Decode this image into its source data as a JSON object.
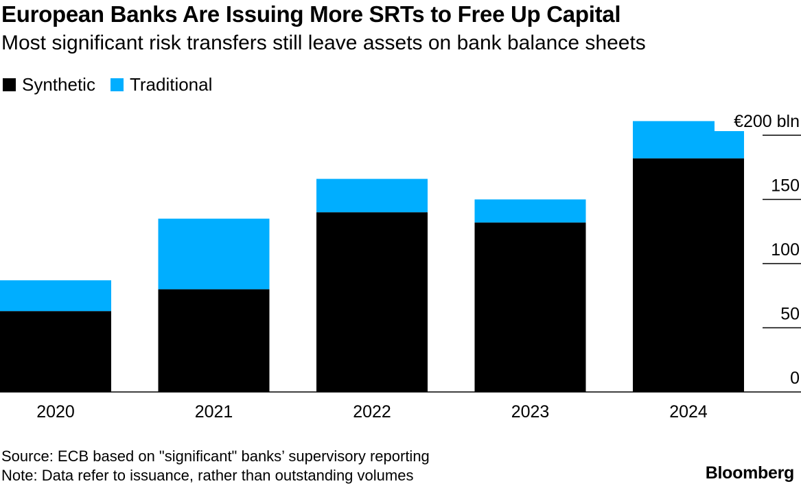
{
  "chart_data": {
    "type": "bar",
    "stacked": true,
    "title": "European Banks Are Issuing More SRTs to Free Up Capital",
    "subtitle": "Most significant risk transfers still leave assets on bank balance sheets",
    "categories": [
      "2020",
      "2021",
      "2022",
      "2023",
      "2024"
    ],
    "series": [
      {
        "name": "Synthetic",
        "color": "#000000",
        "values": [
          63,
          80,
          140,
          132,
          182
        ]
      },
      {
        "name": "Traditional",
        "color": "#00aeff",
        "values": [
          24,
          55,
          26,
          18,
          29
        ]
      }
    ],
    "ylim": [
      0,
      200
    ],
    "yticks": [
      0,
      50,
      100,
      150,
      200
    ],
    "ytick_labels": [
      "0",
      "50",
      "100",
      "150",
      "€200 bln"
    ],
    "y_axis_position": "right",
    "grid": false,
    "legend_position": "top-left"
  },
  "footer": {
    "source": "Source: ECB based on \"significant\" banks’ supervisory reporting",
    "note": "Note: Data refer to issuance, rather than outstanding volumes",
    "brand": "Bloomberg"
  }
}
